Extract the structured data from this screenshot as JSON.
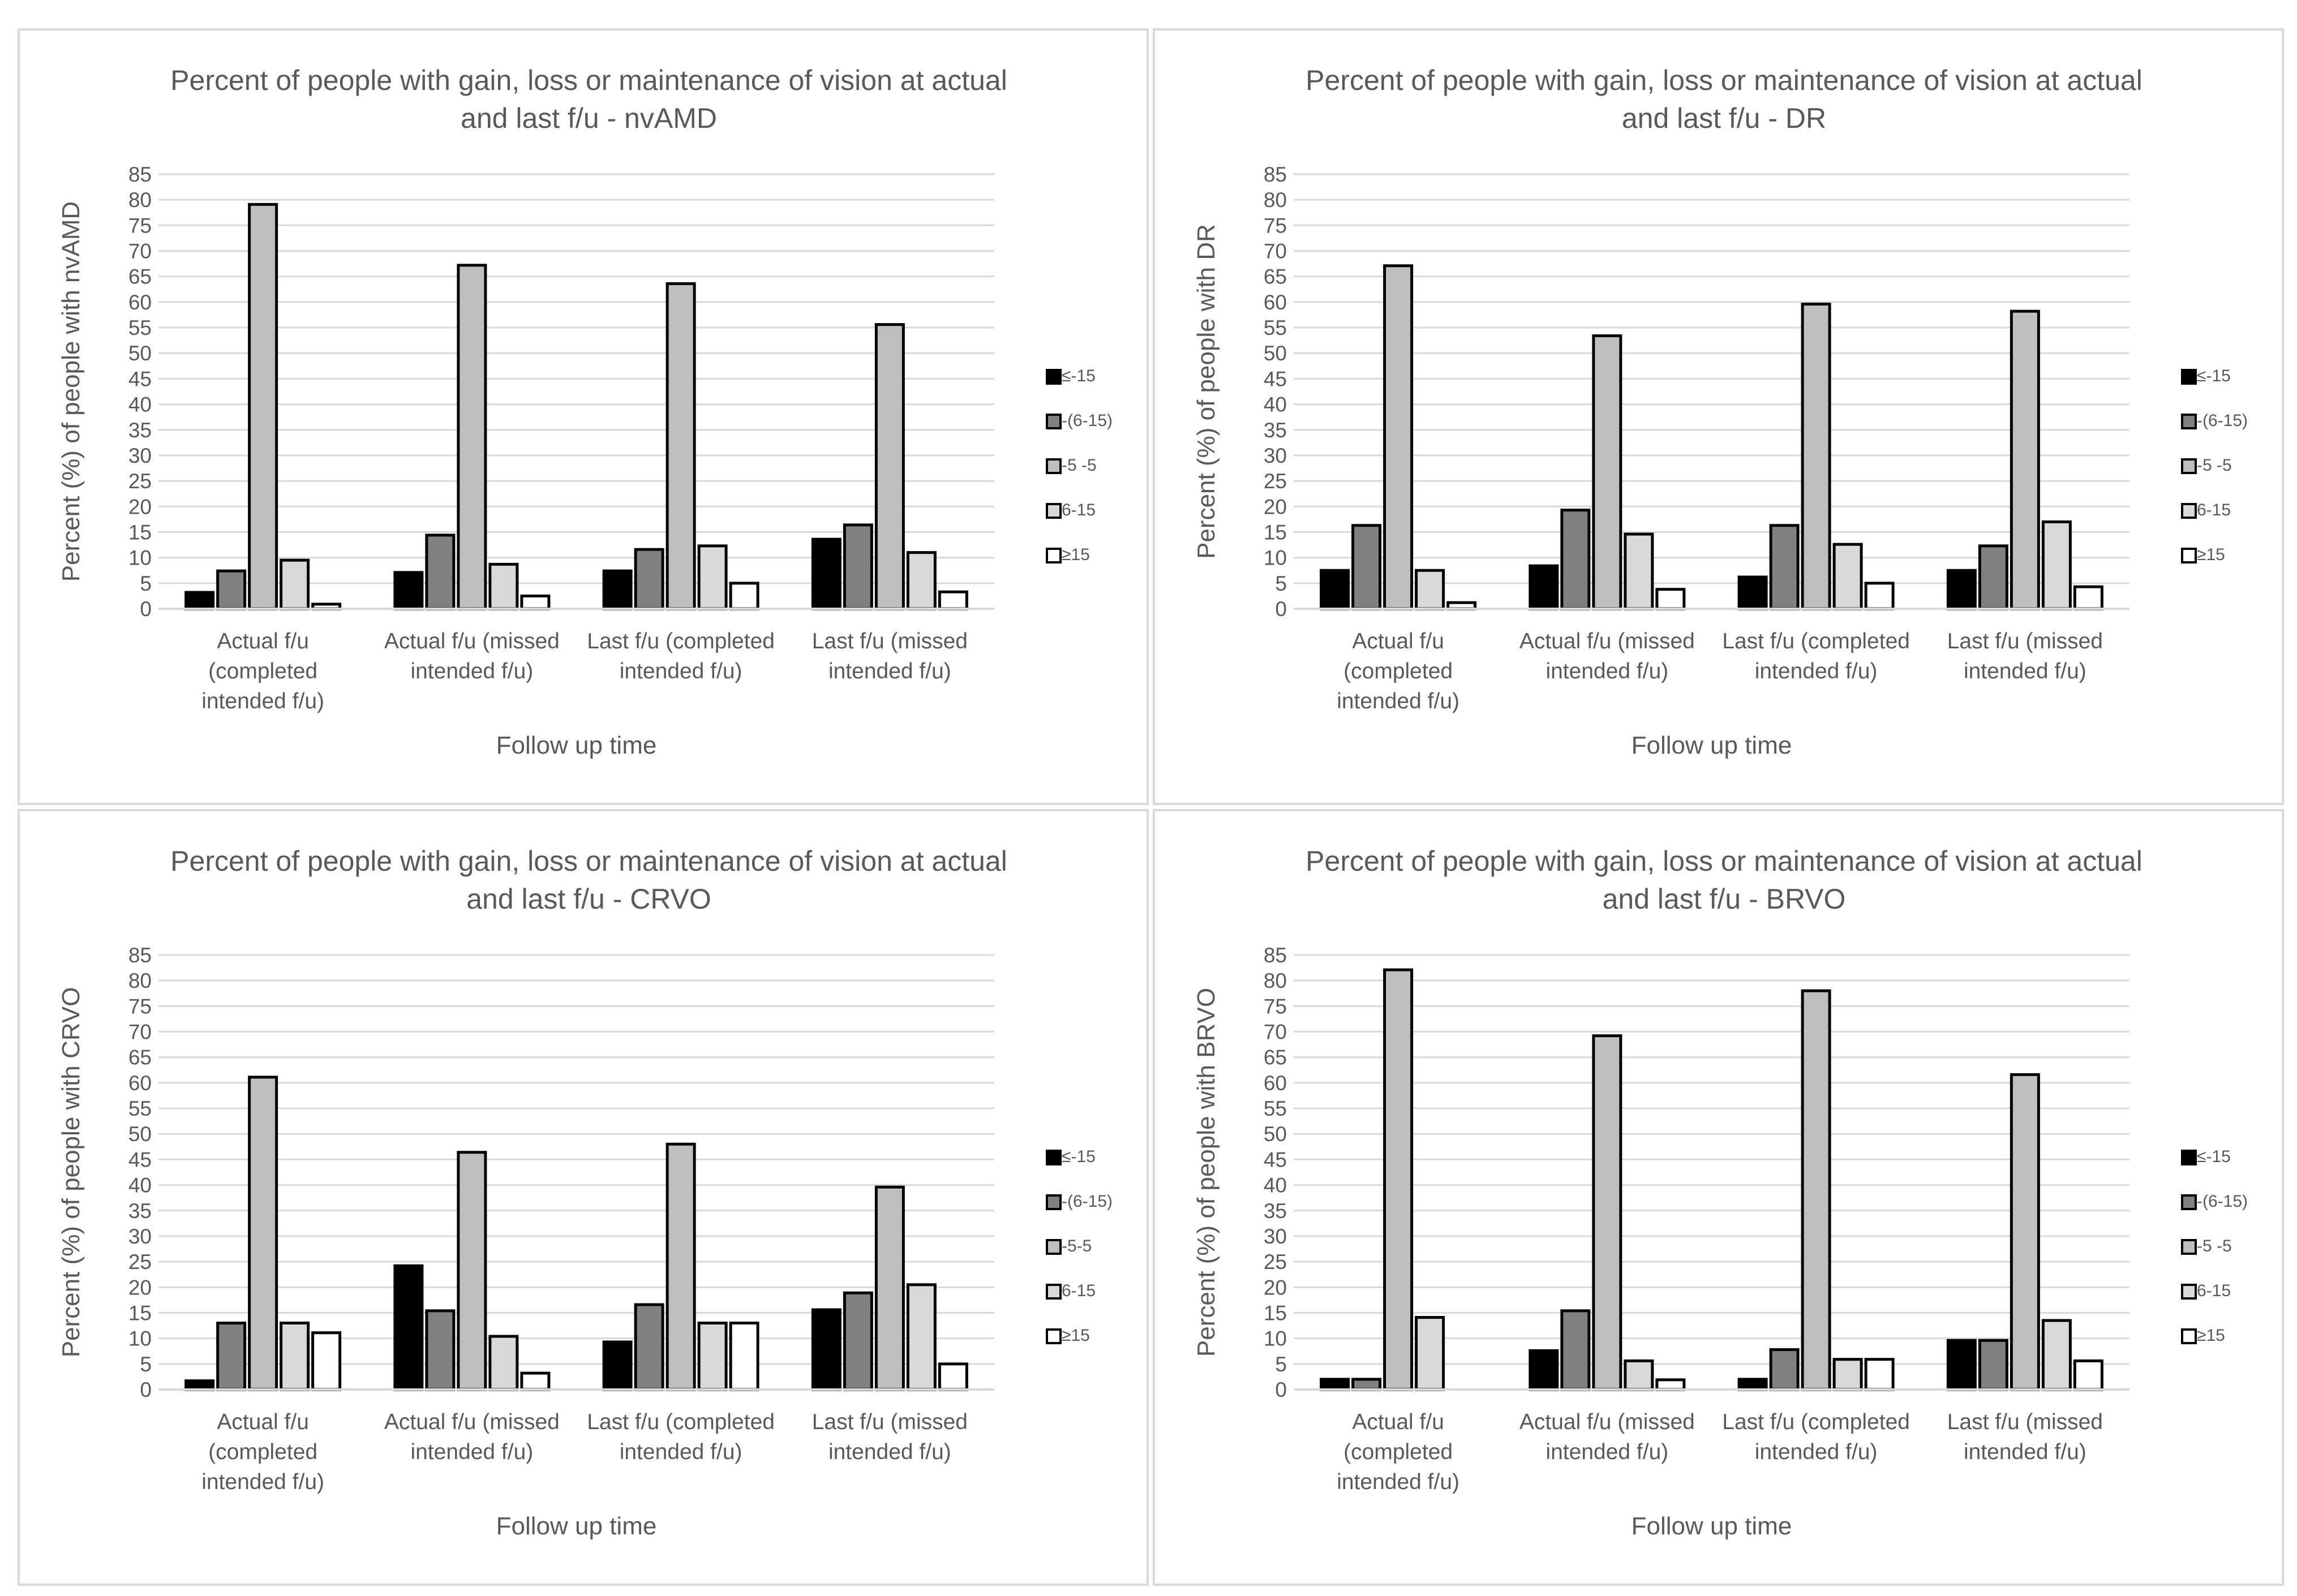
{
  "series_colors": {
    "<=-15": "#000000",
    "-(6-15)": "#808080",
    "-5-5": "#bfbfbf",
    "6-15": "#d9d9d9",
    ">=15": "#ffffff"
  },
  "chart_data": [
    {
      "type": "bar",
      "title_lines": [
        "Percent of people with gain, loss or maintenance of vision at actual",
        "and last f/u - nvAMD"
      ],
      "xlabel": "Follow up time",
      "ylabel": "Percent (%) of people with nvAMD",
      "ylim": [
        0,
        85
      ],
      "yticks": [
        0,
        5,
        10,
        15,
        20,
        25,
        30,
        35,
        40,
        45,
        50,
        55,
        60,
        65,
        70,
        75,
        80,
        85
      ],
      "grid": true,
      "legend_position": "right",
      "categories": [
        [
          "Actual f/u",
          "(completed",
          "intended f/u)"
        ],
        [
          "Actual f/u (missed",
          "intended f/u)"
        ],
        [
          "Last f/u (completed",
          "intended f/u)"
        ],
        [
          "Last f/u (missed",
          "intended f/u)"
        ]
      ],
      "series": [
        {
          "name": "≤-15",
          "key": "<=-15",
          "values": [
            3.2,
            7.1,
            7.4,
            13.6
          ]
        },
        {
          "name": "-(6-15)",
          "key": "-(6-15)",
          "values": [
            7.4,
            14.4,
            11.6,
            16.4
          ]
        },
        {
          "name": "-5 -5",
          "key": "-5-5",
          "values": [
            79.1,
            67.2,
            63.6,
            55.6
          ]
        },
        {
          "name": "6-15",
          "key": "6-15",
          "values": [
            9.5,
            8.7,
            12.3,
            11.0
          ]
        },
        {
          "name": "≥15",
          "key": ">=15",
          "values": [
            0.9,
            2.5,
            5.0,
            3.3
          ]
        }
      ]
    },
    {
      "type": "bar",
      "title_lines": [
        "Percent of people with gain, loss or maintenance of vision at actual",
        "and last f/u - DR"
      ],
      "xlabel": "Follow up time",
      "ylabel": "Percent (%) of people with DR",
      "ylim": [
        0,
        85
      ],
      "yticks": [
        0,
        5,
        10,
        15,
        20,
        25,
        30,
        35,
        40,
        45,
        50,
        55,
        60,
        65,
        70,
        75,
        80,
        85
      ],
      "grid": true,
      "legend_position": "right",
      "categories": [
        [
          "Actual f/u",
          "(completed",
          "intended f/u)"
        ],
        [
          "Actual f/u (missed",
          "intended f/u)"
        ],
        [
          "Last f/u (completed",
          "intended f/u)"
        ],
        [
          "Last f/u (missed",
          "intended f/u)"
        ]
      ],
      "series": [
        {
          "name": "≤-15",
          "key": "<=-15",
          "values": [
            7.5,
            8.4,
            6.2,
            7.5
          ]
        },
        {
          "name": "-(6-15)",
          "key": "-(6-15)",
          "values": [
            16.3,
            19.3,
            16.3,
            12.3
          ]
        },
        {
          "name": "-5 -5",
          "key": "-5-5",
          "values": [
            67.1,
            53.4,
            59.6,
            58.2
          ]
        },
        {
          "name": "6-15",
          "key": "6-15",
          "values": [
            7.5,
            14.6,
            12.6,
            17.0
          ]
        },
        {
          "name": "≥15",
          "key": ">=15",
          "values": [
            1.2,
            3.8,
            5.0,
            4.3
          ]
        }
      ]
    },
    {
      "type": "bar",
      "title_lines": [
        "Percent of people with gain, loss or maintenance of vision at actual",
        "and last f/u - CRVO"
      ],
      "xlabel": "Follow up time",
      "ylabel": "Percent (%) of people with CRVO",
      "ylim": [
        0,
        85
      ],
      "yticks": [
        0,
        5,
        10,
        15,
        20,
        25,
        30,
        35,
        40,
        45,
        50,
        55,
        60,
        65,
        70,
        75,
        80,
        85
      ],
      "grid": true,
      "legend_position": "right",
      "categories": [
        [
          "Actual f/u",
          "(completed",
          "intended f/u)"
        ],
        [
          "Actual f/u (missed",
          "intended f/u)"
        ],
        [
          "Last f/u (completed",
          "intended f/u)"
        ],
        [
          "Last f/u (missed",
          "intended f/u)"
        ]
      ],
      "series": [
        {
          "name": "≤-15",
          "key": "<=-15",
          "values": [
            1.7,
            24.2,
            9.3,
            15.6
          ]
        },
        {
          "name": "-(6-15)",
          "key": "-(6-15)",
          "values": [
            13.0,
            15.4,
            16.6,
            18.9
          ]
        },
        {
          "name": "-5-5",
          "key": "-5-5",
          "values": [
            61.1,
            46.4,
            48.0,
            39.6
          ]
        },
        {
          "name": "6-15",
          "key": "6-15",
          "values": [
            13.0,
            10.4,
            13.0,
            20.5
          ]
        },
        {
          "name": "≥15",
          "key": ">=15",
          "values": [
            11.1,
            3.2,
            13.0,
            5.0
          ]
        }
      ]
    },
    {
      "type": "bar",
      "title_lines": [
        "Percent of people with gain, loss or maintenance of vision at actual",
        "and last f/u - BRVO"
      ],
      "xlabel": "Follow up time",
      "ylabel": "Percent (%) of people with BRVO",
      "ylim": [
        0,
        85
      ],
      "yticks": [
        0,
        5,
        10,
        15,
        20,
        25,
        30,
        35,
        40,
        45,
        50,
        55,
        60,
        65,
        70,
        75,
        80,
        85
      ],
      "grid": true,
      "legend_position": "right",
      "categories": [
        [
          "Actual f/u",
          "(completed",
          "intended f/u)"
        ],
        [
          "Actual f/u (missed",
          "intended f/u)"
        ],
        [
          "Last f/u (completed",
          "intended f/u)"
        ],
        [
          "Last f/u (missed",
          "intended f/u)"
        ]
      ],
      "series": [
        {
          "name": "≤-15",
          "key": "<=-15",
          "values": [
            2.0,
            7.6,
            2.0,
            9.6
          ]
        },
        {
          "name": "-(6-15)",
          "key": "-(6-15)",
          "values": [
            2.0,
            15.4,
            7.8,
            9.6
          ]
        },
        {
          "name": "-5 -5",
          "key": "-5-5",
          "values": [
            82.1,
            69.2,
            78.0,
            61.6
          ]
        },
        {
          "name": "6-15",
          "key": "6-15",
          "values": [
            14.1,
            5.6,
            5.9,
            13.5
          ]
        },
        {
          "name": "≥15",
          "key": ">=15",
          "values": [
            0,
            1.9,
            5.9,
            5.6
          ]
        }
      ]
    }
  ]
}
